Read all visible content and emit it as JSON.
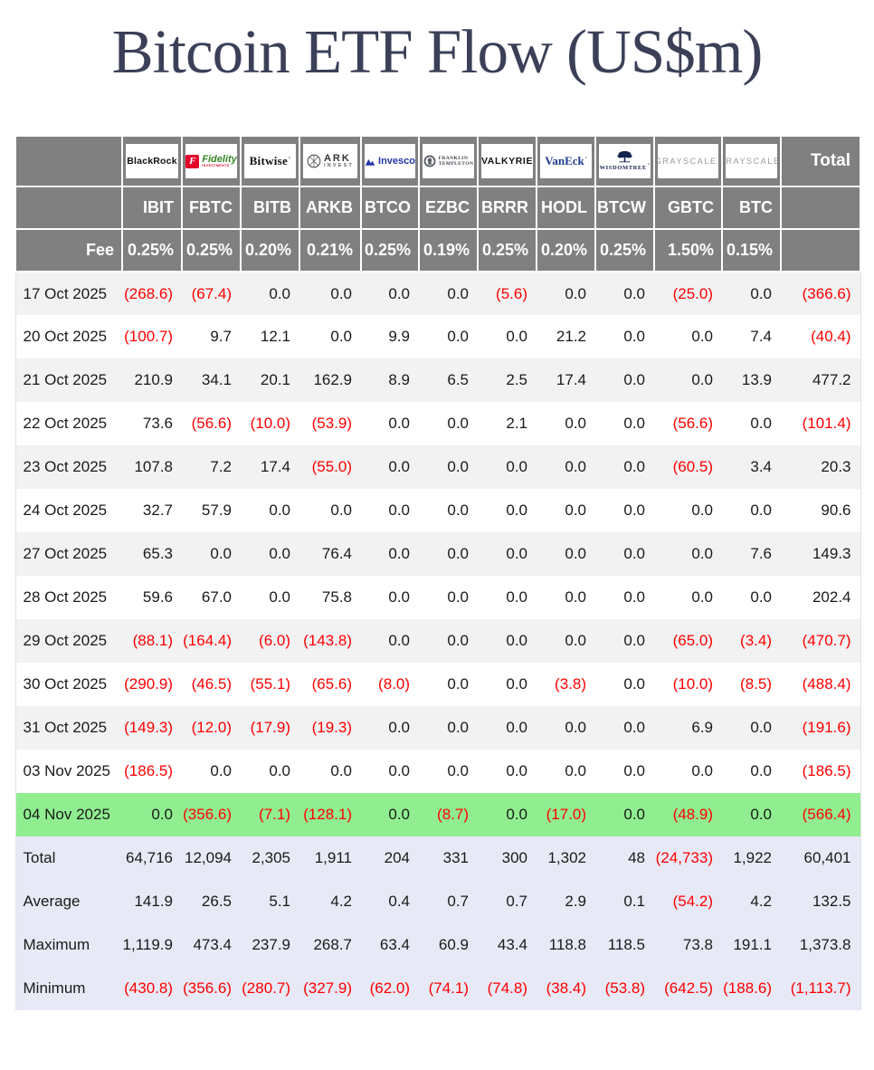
{
  "title": "Bitcoin ETF Flow (US$m)",
  "colors": {
    "header_bg": "#808080",
    "negative": "#ff0000",
    "highlight_row": "#90EE90",
    "summary_row_bg": "#E7EAF6",
    "stripe": "#F2F2F2",
    "title": "#3B4058"
  },
  "chart_data": {
    "type": "table",
    "title": "Bitcoin ETF Flow (US$m)",
    "fee_label": "Fee",
    "total_label": "Total",
    "providers": [
      {
        "name": "BlackRock",
        "ticker": "IBIT",
        "fee": "0.25%",
        "logo_type": "blackrock",
        "logo_text": "BlackRock"
      },
      {
        "name": "Fidelity",
        "ticker": "FBTC",
        "fee": "0.25%",
        "logo_type": "fidelity",
        "logo_text": "Fidelity",
        "logo_icon_letter": "F",
        "logo_subtext": "INVESTMENTS"
      },
      {
        "name": "Bitwise",
        "ticker": "BITB",
        "fee": "0.20%",
        "logo_type": "bitwise",
        "logo_text": "Bitwise",
        "logo_mark": "°"
      },
      {
        "name": "ARK Invest",
        "ticker": "ARKB",
        "fee": "0.21%",
        "logo_type": "ark-invest",
        "logo_text": "ARK",
        "logo_subtext": "INVEST"
      },
      {
        "name": "Invesco",
        "ticker": "BTCO",
        "fee": "0.25%",
        "logo_type": "invesco",
        "logo_text": "Invesco"
      },
      {
        "name": "Franklin Templeton",
        "ticker": "EZBC",
        "fee": "0.19%",
        "logo_type": "franklin-templeton",
        "logo_text": "FRANKLIN",
        "logo_subtext": "TEMPLETON"
      },
      {
        "name": "Valkyrie",
        "ticker": "BRRR",
        "fee": "0.25%",
        "logo_type": "valkyrie",
        "logo_text": "VALKYRIE"
      },
      {
        "name": "VanEck",
        "ticker": "HODL",
        "fee": "0.20%",
        "logo_type": "vaneck",
        "logo_text": "VanEck",
        "logo_mark": "°"
      },
      {
        "name": "WisdomTree",
        "ticker": "BTCW",
        "fee": "0.25%",
        "logo_type": "wisdomtree",
        "logo_text": "WISDOMTREE",
        "logo_mark": "°"
      },
      {
        "name": "Grayscale",
        "ticker": "GBTC",
        "fee": "1.50%",
        "logo_type": "grayscale",
        "logo_text": "GRAYSCALE",
        "logo_mark": "°"
      },
      {
        "name": "Grayscale",
        "ticker": "BTC",
        "fee": "0.15%",
        "logo_type": "grayscale",
        "logo_text": "GRAYSCALE",
        "logo_mark": "°"
      }
    ],
    "rows": [
      {
        "date": "17 Oct 2025",
        "highlight": false,
        "values": [
          "(268.6)",
          "(67.4)",
          "0.0",
          "0.0",
          "0.0",
          "0.0",
          "(5.6)",
          "0.0",
          "0.0",
          "(25.0)",
          "0.0",
          "(366.6)"
        ]
      },
      {
        "date": "20 Oct 2025",
        "highlight": false,
        "values": [
          "(100.7)",
          "9.7",
          "12.1",
          "0.0",
          "9.9",
          "0.0",
          "0.0",
          "21.2",
          "0.0",
          "0.0",
          "7.4",
          "(40.4)"
        ]
      },
      {
        "date": "21 Oct 2025",
        "highlight": false,
        "values": [
          "210.9",
          "34.1",
          "20.1",
          "162.9",
          "8.9",
          "6.5",
          "2.5",
          "17.4",
          "0.0",
          "0.0",
          "13.9",
          "477.2"
        ]
      },
      {
        "date": "22 Oct 2025",
        "highlight": false,
        "values": [
          "73.6",
          "(56.6)",
          "(10.0)",
          "(53.9)",
          "0.0",
          "0.0",
          "2.1",
          "0.0",
          "0.0",
          "(56.6)",
          "0.0",
          "(101.4)"
        ]
      },
      {
        "date": "23 Oct 2025",
        "highlight": false,
        "values": [
          "107.8",
          "7.2",
          "17.4",
          "(55.0)",
          "0.0",
          "0.0",
          "0.0",
          "0.0",
          "0.0",
          "(60.5)",
          "3.4",
          "20.3"
        ]
      },
      {
        "date": "24 Oct 2025",
        "highlight": false,
        "values": [
          "32.7",
          "57.9",
          "0.0",
          "0.0",
          "0.0",
          "0.0",
          "0.0",
          "0.0",
          "0.0",
          "0.0",
          "0.0",
          "90.6"
        ]
      },
      {
        "date": "27 Oct 2025",
        "highlight": false,
        "values": [
          "65.3",
          "0.0",
          "0.0",
          "76.4",
          "0.0",
          "0.0",
          "0.0",
          "0.0",
          "0.0",
          "0.0",
          "7.6",
          "149.3"
        ]
      },
      {
        "date": "28 Oct 2025",
        "highlight": false,
        "values": [
          "59.6",
          "67.0",
          "0.0",
          "75.8",
          "0.0",
          "0.0",
          "0.0",
          "0.0",
          "0.0",
          "0.0",
          "0.0",
          "202.4"
        ]
      },
      {
        "date": "29 Oct 2025",
        "highlight": false,
        "values": [
          "(88.1)",
          "(164.4)",
          "(6.0)",
          "(143.8)",
          "0.0",
          "0.0",
          "0.0",
          "0.0",
          "0.0",
          "(65.0)",
          "(3.4)",
          "(470.7)"
        ]
      },
      {
        "date": "30 Oct 2025",
        "highlight": false,
        "values": [
          "(290.9)",
          "(46.5)",
          "(55.1)",
          "(65.6)",
          "(8.0)",
          "0.0",
          "0.0",
          "(3.8)",
          "0.0",
          "(10.0)",
          "(8.5)",
          "(488.4)"
        ]
      },
      {
        "date": "31 Oct 2025",
        "highlight": false,
        "values": [
          "(149.3)",
          "(12.0)",
          "(17.9)",
          "(19.3)",
          "0.0",
          "0.0",
          "0.0",
          "0.0",
          "0.0",
          "6.9",
          "0.0",
          "(191.6)"
        ]
      },
      {
        "date": "03 Nov 2025",
        "highlight": false,
        "values": [
          "(186.5)",
          "0.0",
          "0.0",
          "0.0",
          "0.0",
          "0.0",
          "0.0",
          "0.0",
          "0.0",
          "0.0",
          "0.0",
          "(186.5)"
        ]
      },
      {
        "date": "04 Nov 2025",
        "highlight": true,
        "values": [
          "0.0",
          "(356.6)",
          "(7.1)",
          "(128.1)",
          "0.0",
          "(8.7)",
          "0.0",
          "(17.0)",
          "0.0",
          "(48.9)",
          "0.0",
          "(566.4)"
        ]
      }
    ],
    "summary": [
      {
        "label": "Total",
        "values": [
          "64,716",
          "12,094",
          "2,305",
          "1,911",
          "204",
          "331",
          "300",
          "1,302",
          "48",
          "(24,733)",
          "1,922",
          "60,401"
        ]
      },
      {
        "label": "Average",
        "values": [
          "141.9",
          "26.5",
          "5.1",
          "4.2",
          "0.4",
          "0.7",
          "0.7",
          "2.9",
          "0.1",
          "(54.2)",
          "4.2",
          "132.5"
        ]
      },
      {
        "label": "Maximum",
        "values": [
          "1,119.9",
          "473.4",
          "237.9",
          "268.7",
          "63.4",
          "60.9",
          "43.4",
          "118.8",
          "118.5",
          "73.8",
          "191.1",
          "1,373.8"
        ]
      },
      {
        "label": "Minimum",
        "values": [
          "(430.8)",
          "(356.6)",
          "(280.7)",
          "(327.9)",
          "(62.0)",
          "(74.1)",
          "(74.8)",
          "(38.4)",
          "(53.8)",
          "(642.5)",
          "(188.6)",
          "(1,113.7)"
        ]
      }
    ]
  }
}
